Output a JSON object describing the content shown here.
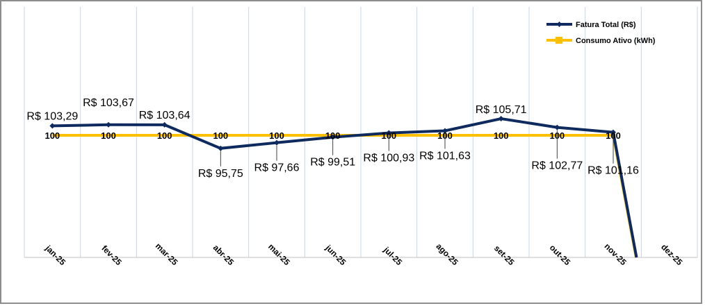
{
  "chart_data": {
    "type": "line",
    "categories": [
      "jan-25",
      "fev-25",
      "mar-25",
      "abr-25",
      "mai-25",
      "jun-25",
      "jul-25",
      "ago-25",
      "set-25",
      "out-25",
      "nov-25",
      "dez-25"
    ],
    "series": [
      {
        "name": "Fatura Total (R$)",
        "color": "#0e2a5e",
        "axis": "primary",
        "values": [
          103.29,
          103.67,
          103.64,
          95.75,
          97.66,
          99.51,
          100.93,
          101.63,
          105.71,
          102.77,
          101.16,
          0
        ],
        "labels": [
          "R$ 103,29",
          "R$ 103,67",
          "R$ 103,64",
          "R$ 95,75",
          "R$ 97,66",
          "R$ 99,51",
          "R$ 100,93",
          "R$ 101,63",
          "R$ 105,71",
          "R$ 102,77",
          "R$ 101,16",
          ""
        ]
      },
      {
        "name": "Consumo Ativo (kWh)",
        "color": "#ffc000",
        "axis": "secondary",
        "values": [
          100,
          100,
          100,
          100,
          100,
          100,
          100,
          100,
          100,
          100,
          100,
          0
        ],
        "labels": [
          "100",
          "100",
          "100",
          "100",
          "100",
          "100",
          "100",
          "100",
          "100",
          "100",
          "100",
          ""
        ]
      }
    ],
    "grid": "vertical",
    "legend": "top-right"
  }
}
